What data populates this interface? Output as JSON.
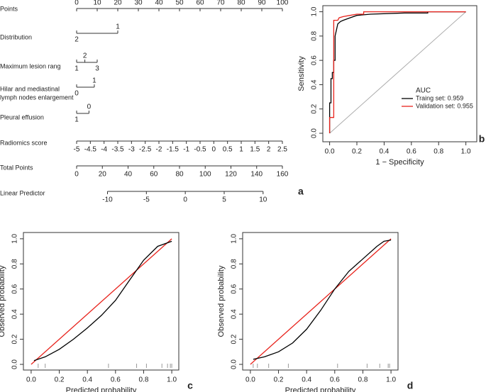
{
  "chart_data": [
    {
      "type": "nomogram",
      "panel": "a",
      "points_label": "Points",
      "points_ticks": [
        0,
        10,
        20,
        30,
        40,
        50,
        60,
        70,
        80,
        90,
        100
      ],
      "variables": [
        {
          "name": [
            "Distribution"
          ],
          "levels": [
            {
              "label": "2",
              "points": 0
            },
            {
              "label": "1",
              "points": 20
            }
          ]
        },
        {
          "name": [
            "Maximum lesion rang"
          ],
          "levels": [
            {
              "label": "1",
              "points": 0
            },
            {
              "label": "2",
              "points": 4
            },
            {
              "label": "3",
              "points": 10
            }
          ]
        },
        {
          "name": [
            "Hilar and mediastinal",
            "lymph nodes enlargement"
          ],
          "levels": [
            {
              "label": "0",
              "points": 0
            },
            {
              "label": "1",
              "points": 8.6
            }
          ]
        },
        {
          "name": [
            "Pleural effusion"
          ],
          "levels": [
            {
              "label": "1",
              "points": 0
            },
            {
              "label": "0",
              "points": 6
            }
          ]
        }
      ],
      "radiomics": {
        "name": "Radiomics score",
        "ticks": [
          -5,
          -4.5,
          -4,
          -3.5,
          -3,
          -2.5,
          -2,
          -1.5,
          -1,
          -0.5,
          0,
          0.5,
          1,
          1.5,
          2,
          2.5
        ],
        "lim": [
          -5,
          2.5
        ],
        "points_lim": [
          0,
          100
        ]
      },
      "total": {
        "name": "Total Points",
        "ticks": [
          0,
          20,
          40,
          60,
          80,
          100,
          120,
          140,
          160
        ],
        "lim": [
          0,
          160
        ]
      },
      "linear": {
        "name": "Linear Predictor",
        "ticks": [
          -10,
          -5,
          0,
          5,
          10
        ],
        "lim": [
          -10,
          10
        ],
        "total_points_lim": [
          24,
          145
        ]
      }
    },
    {
      "type": "line",
      "panel": "b",
      "xlabel": "1 − Specificity",
      "ylabel": "Sensitivity",
      "xlim": [
        -0.05,
        1.08
      ],
      "ylim": [
        -0.07,
        1.05
      ],
      "diagonal": true,
      "xticks": [
        {
          "value": 0,
          "label": "0.0"
        },
        {
          "value": 0.2,
          "label": "0.2"
        },
        {
          "value": 0.4,
          "label": "0.4"
        },
        {
          "value": 0.6,
          "label": "0.6"
        },
        {
          "value": 0.8,
          "label": "0.8"
        },
        {
          "value": 1,
          "label": "1.0"
        }
      ],
      "yticks": [
        {
          "value": 0,
          "label": "0.0"
        },
        {
          "value": 0.2,
          "label": "0.2"
        },
        {
          "value": 0.4,
          "label": "0.4"
        },
        {
          "value": 0.6,
          "label": "0.6"
        },
        {
          "value": 0.8,
          "label": "0.8"
        },
        {
          "value": 1,
          "label": "1.0"
        }
      ],
      "legend_title": "AUC",
      "series": [
        {
          "name": "Traing set: 0.959",
          "color": "#000000",
          "x": [
            0,
            0,
            0.01,
            0.01,
            0.02,
            0.02,
            0.03,
            0.03,
            0.04,
            0.04,
            0.05,
            0.06,
            0.08,
            0.1,
            0.15,
            0.2,
            0.3,
            0.55,
            0.72,
            0.72,
            1
          ],
          "values": [
            0,
            0.25,
            0.25,
            0.45,
            0.45,
            0.5,
            0.5,
            0.6,
            0.6,
            0.8,
            0.85,
            0.9,
            0.92,
            0.93,
            0.95,
            0.97,
            0.98,
            0.99,
            0.99,
            1,
            1
          ]
        },
        {
          "name": "Validation set: 0.955",
          "color": "#e8231c",
          "x": [
            0,
            0,
            0.03,
            0.03,
            0.06,
            0.07,
            0.1,
            0.15,
            0.2,
            0.25,
            0.25,
            1
          ],
          "values": [
            0,
            0.13,
            0.13,
            0.93,
            0.93,
            0.95,
            0.96,
            0.97,
            0.98,
            0.98,
            1,
            1
          ]
        }
      ]
    },
    {
      "type": "line",
      "panel": "c",
      "xlabel": "Predicted probability",
      "ylabel": "Observed probability",
      "xlim": [
        -0.055,
        1.05
      ],
      "ylim": [
        -0.045,
        1.05
      ],
      "xticks": [
        {
          "value": 0,
          "label": "0.0"
        },
        {
          "value": 0.2,
          "label": "0.2"
        },
        {
          "value": 0.4,
          "label": "0.4"
        },
        {
          "value": 0.6,
          "label": "0.6"
        },
        {
          "value": 0.8,
          "label": "0.8"
        },
        {
          "value": 1,
          "label": "1.0"
        }
      ],
      "yticks": [
        {
          "value": 0,
          "label": "0.0"
        },
        {
          "value": 0.2,
          "label": "0.2"
        },
        {
          "value": 0.4,
          "label": "0.4"
        },
        {
          "value": 0.6,
          "label": "0.6"
        },
        {
          "value": 0.8,
          "label": "0.8"
        },
        {
          "value": 1,
          "label": "1.0"
        }
      ],
      "rug": [
        0.05,
        0.1,
        0.55,
        0.75,
        0.82,
        0.93,
        0.97,
        0.99,
        1
      ],
      "series": [
        {
          "color": "#e8231c",
          "x": [
            0,
            1
          ],
          "values": [
            0,
            1
          ]
        },
        {
          "color": "#000000",
          "x": [
            0.02,
            0.1,
            0.2,
            0.3,
            0.4,
            0.5,
            0.6,
            0.7,
            0.8,
            0.9,
            1
          ],
          "values": [
            0.03,
            0.06,
            0.12,
            0.2,
            0.29,
            0.39,
            0.51,
            0.67,
            0.83,
            0.94,
            0.98
          ]
        }
      ]
    },
    {
      "type": "line",
      "panel": "d",
      "xlabel": "Predicted probability",
      "ylabel": "Observed probability",
      "xlim": [
        -0.055,
        1.05
      ],
      "ylim": [
        -0.045,
        1.05
      ],
      "xticks": [
        {
          "value": 0,
          "label": "0.0"
        },
        {
          "value": 0.2,
          "label": "0.2"
        },
        {
          "value": 0.4,
          "label": "0.4"
        },
        {
          "value": 0.6,
          "label": "0.6"
        },
        {
          "value": 0.8,
          "label": "0.8"
        },
        {
          "value": 1,
          "label": "1.0"
        }
      ],
      "yticks": [
        {
          "value": 0,
          "label": "0.0"
        },
        {
          "value": 0.2,
          "label": "0.2"
        },
        {
          "value": 0.4,
          "label": "0.4"
        },
        {
          "value": 0.6,
          "label": "0.6"
        },
        {
          "value": 0.8,
          "label": "0.8"
        },
        {
          "value": 1,
          "label": "1.0"
        }
      ],
      "rug": [
        0.02,
        0.05,
        0.13,
        0.27,
        0.62,
        0.83,
        0.92,
        0.98,
        0.99
      ],
      "series": [
        {
          "color": "#e8231c",
          "x": [
            0,
            1
          ],
          "values": [
            0,
            1
          ]
        },
        {
          "color": "#000000",
          "x": [
            0.02,
            0.1,
            0.2,
            0.3,
            0.4,
            0.5,
            0.6,
            0.7,
            0.8,
            0.9,
            0.95,
            1
          ],
          "values": [
            0.04,
            0.06,
            0.1,
            0.17,
            0.28,
            0.43,
            0.6,
            0.74,
            0.84,
            0.94,
            0.98,
            0.99
          ]
        }
      ]
    }
  ]
}
